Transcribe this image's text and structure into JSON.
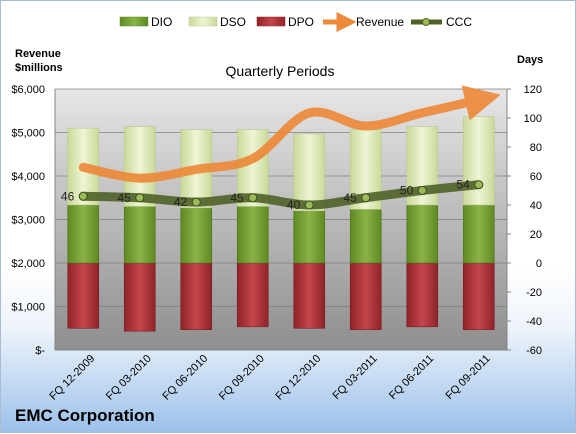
{
  "chart_data": {
    "type": "bar",
    "title": "Quarterly Periods",
    "company": "EMC Corporation",
    "left_axis_title": [
      "Revenue",
      "$millions"
    ],
    "right_axis_title": "Days",
    "categories": [
      "FQ 12-2009",
      "FQ 03-2010",
      "FQ 06-2010",
      "FQ 09-2010",
      "FQ 12-2010",
      "FQ 03-2011",
      "FQ 06-2011",
      "FQ 09-2011"
    ],
    "left_ticks": [
      "$-",
      "$1,000",
      "$2,000",
      "$3,000",
      "$4,000",
      "$5,000",
      "$6,000"
    ],
    "right_ticks": [
      "-60",
      "-40",
      "-20",
      "0",
      "20",
      "40",
      "60",
      "80",
      "100",
      "120"
    ],
    "left_ylim": [
      0,
      6000
    ],
    "right_ylim": [
      -60,
      120
    ],
    "grid": true,
    "legend_position": "top",
    "series": [
      {
        "name": "DIO",
        "axis": "right",
        "kind": "bar",
        "color": "#77a033",
        "values": [
          40,
          39,
          38,
          39,
          36,
          37,
          40,
          40
        ]
      },
      {
        "name": "DSO",
        "axis": "right",
        "kind": "bar-stacked-on-DIO",
        "color": "#dde9b8",
        "values": [
          53,
          55,
          54,
          53,
          53,
          55,
          54,
          61
        ]
      },
      {
        "name": "DPO",
        "axis": "right",
        "kind": "bar-negative",
        "color": "#b2353b",
        "values": [
          -45,
          -47,
          -46,
          -44,
          -45,
          -46,
          -44,
          -46
        ]
      },
      {
        "name": "Revenue",
        "axis": "left",
        "kind": "line-arrow",
        "color": "#ed8a3a",
        "values": [
          4200,
          3950,
          4150,
          4400,
          5450,
          5150,
          5450,
          5750
        ]
      },
      {
        "name": "CCC",
        "axis": "right",
        "kind": "line-markers",
        "color": "#4f6228",
        "values": [
          46,
          45,
          42,
          45,
          40,
          45,
          50,
          54
        ]
      }
    ],
    "ccc_labels": [
      "46",
      "45",
      "42",
      "45",
      "40",
      "45",
      "50",
      "54"
    ]
  }
}
